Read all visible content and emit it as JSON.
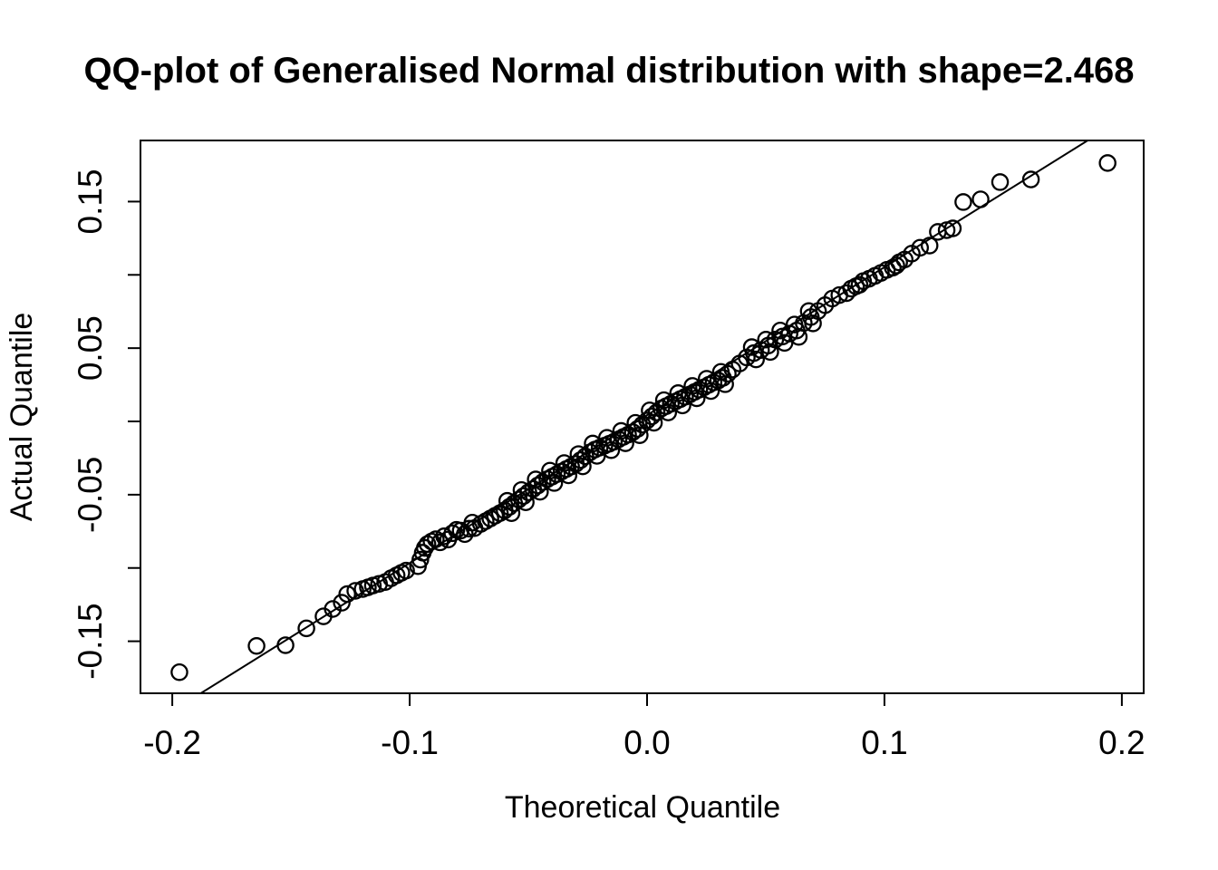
{
  "chart_data": {
    "type": "scatter",
    "title": "QQ-plot of Generalised Normal distribution with shape=2.468",
    "xlabel": "Theoretical Quantile",
    "ylabel": "Actual Quantile",
    "x_range": [
      -0.2134,
      0.2092
    ],
    "y_range": [
      -0.1855,
      0.1917
    ],
    "grid": "off",
    "x_ticks": [
      {
        "value": -0.2,
        "label": "-0.2"
      },
      {
        "value": -0.1,
        "label": "-0.1"
      },
      {
        "value": 0.0,
        "label": "0.0"
      },
      {
        "value": 0.1,
        "label": "0.1"
      },
      {
        "value": 0.2,
        "label": "0.2"
      }
    ],
    "y_ticks": [
      {
        "value": 0.15,
        "label": "0.15"
      },
      {
        "value": 0.1,
        "label": ""
      },
      {
        "value": 0.05,
        "label": "0.05"
      },
      {
        "value": 0.0,
        "label": ""
      },
      {
        "value": -0.05,
        "label": "-0.05"
      },
      {
        "value": -0.1,
        "label": ""
      },
      {
        "value": -0.15,
        "label": "-0.15"
      }
    ],
    "reference_line": {
      "x1": -0.188,
      "y1": -0.1855,
      "x2": 0.188,
      "y2": 0.1941,
      "stroke": "#000000",
      "width": 2
    },
    "marker": {
      "shape": "open-circle",
      "radius_px": 8.6,
      "stroke": "#000000",
      "stroke_width": 2.3,
      "fill": "none"
    },
    "colors": {
      "foreground": "#000000",
      "background": "#ffffff"
    },
    "points": [
      [
        -0.197,
        -0.1711
      ],
      [
        -0.1645,
        -0.1532
      ],
      [
        -0.1523,
        -0.1527
      ],
      [
        -0.1435,
        -0.1412
      ],
      [
        -0.1363,
        -0.133
      ],
      [
        -0.1324,
        -0.128
      ],
      [
        -0.1286,
        -0.1237
      ],
      [
        -0.1263,
        -0.1178
      ],
      [
        -0.1229,
        -0.1156
      ],
      [
        -0.1198,
        -0.1144
      ],
      [
        -0.1176,
        -0.1132
      ],
      [
        -0.1155,
        -0.112
      ],
      [
        -0.1129,
        -0.1108
      ],
      [
        -0.1103,
        -0.1096
      ],
      [
        -0.1078,
        -0.107
      ],
      [
        -0.1055,
        -0.105
      ],
      [
        -0.1035,
        -0.1033
      ],
      [
        -0.1015,
        -0.1018
      ],
      [
        -0.0965,
        -0.0988
      ],
      [
        -0.0955,
        -0.0943
      ],
      [
        -0.0945,
        -0.0896
      ],
      [
        -0.0936,
        -0.0863
      ],
      [
        -0.0925,
        -0.0837
      ],
      [
        -0.0908,
        -0.0819
      ],
      [
        -0.089,
        -0.0804
      ],
      [
        -0.0872,
        -0.0825
      ],
      [
        -0.0855,
        -0.0784
      ],
      [
        -0.0838,
        -0.0806
      ],
      [
        -0.082,
        -0.0763
      ],
      [
        -0.0803,
        -0.074
      ],
      [
        -0.0785,
        -0.0745
      ],
      [
        -0.0768,
        -0.0769
      ],
      [
        -0.075,
        -0.0732
      ],
      [
        -0.0736,
        -0.0691
      ],
      [
        -0.0727,
        -0.0728
      ],
      [
        -0.07,
        -0.0699
      ],
      [
        -0.068,
        -0.0681
      ],
      [
        -0.066,
        -0.0662
      ],
      [
        -0.064,
        -0.0644
      ],
      [
        -0.062,
        -0.0626
      ],
      [
        -0.06,
        -0.0607
      ],
      [
        -0.0589,
        -0.0542
      ],
      [
        -0.058,
        -0.0583
      ],
      [
        -0.0571,
        -0.0626
      ],
      [
        -0.056,
        -0.0558
      ],
      [
        -0.054,
        -0.0533
      ],
      [
        -0.0529,
        -0.0468
      ],
      [
        -0.052,
        -0.0509
      ],
      [
        -0.0511,
        -0.0552
      ],
      [
        -0.05,
        -0.0484
      ],
      [
        -0.048,
        -0.0461
      ],
      [
        -0.0469,
        -0.0396
      ],
      [
        -0.046,
        -0.0437
      ],
      [
        -0.0451,
        -0.048
      ],
      [
        -0.044,
        -0.0414
      ],
      [
        -0.042,
        -0.0394
      ],
      [
        -0.0409,
        -0.0336
      ],
      [
        -0.04,
        -0.0377
      ],
      [
        -0.0391,
        -0.042
      ],
      [
        -0.038,
        -0.036
      ],
      [
        -0.036,
        -0.0342
      ],
      [
        -0.0349,
        -0.0284
      ],
      [
        -0.034,
        -0.0325
      ],
      [
        -0.0331,
        -0.0368
      ],
      [
        -0.032,
        -0.0308
      ],
      [
        -0.03,
        -0.029
      ],
      [
        -0.0289,
        -0.0223
      ],
      [
        -0.028,
        -0.0264
      ],
      [
        -0.0271,
        -0.0307
      ],
      [
        -0.026,
        -0.0238
      ],
      [
        -0.024,
        -0.0211
      ],
      [
        -0.0229,
        -0.0151
      ],
      [
        -0.022,
        -0.0192
      ],
      [
        -0.0211,
        -0.0235
      ],
      [
        -0.02,
        -0.0179
      ],
      [
        -0.018,
        -0.0166
      ],
      [
        -0.0169,
        -0.0112
      ],
      [
        -0.016,
        -0.0153
      ],
      [
        -0.0151,
        -0.0196
      ],
      [
        -0.014,
        -0.0139
      ],
      [
        -0.012,
        -0.0122
      ],
      [
        -0.0109,
        -0.0065
      ],
      [
        -0.01,
        -0.0106
      ],
      [
        -0.0091,
        -0.0149
      ],
      [
        -0.008,
        -0.009
      ],
      [
        -0.006,
        -0.0073
      ],
      [
        -0.0049,
        -0.001
      ],
      [
        -0.004,
        -0.0051
      ],
      [
        -0.0031,
        -0.0094
      ],
      [
        -0.002,
        -0.0022
      ],
      [
        0.0,
        0.0006
      ],
      [
        0.0011,
        0.0075
      ],
      [
        0.002,
        0.0034
      ],
      [
        0.0029,
        -0.0009
      ],
      [
        0.004,
        0.0061
      ],
      [
        0.006,
        0.0088
      ],
      [
        0.0071,
        0.0145
      ],
      [
        0.008,
        0.0104
      ],
      [
        0.0089,
        0.0061
      ],
      [
        0.01,
        0.012
      ],
      [
        0.012,
        0.0136
      ],
      [
        0.0131,
        0.0193
      ],
      [
        0.014,
        0.0152
      ],
      [
        0.0149,
        0.0109
      ],
      [
        0.016,
        0.0168
      ],
      [
        0.018,
        0.0184
      ],
      [
        0.0191,
        0.0242
      ],
      [
        0.02,
        0.0201
      ],
      [
        0.0209,
        0.0158
      ],
      [
        0.022,
        0.0217
      ],
      [
        0.024,
        0.0233
      ],
      [
        0.0251,
        0.0291
      ],
      [
        0.026,
        0.025
      ],
      [
        0.0269,
        0.0207
      ],
      [
        0.028,
        0.0266
      ],
      [
        0.03,
        0.0279
      ],
      [
        0.0311,
        0.0338
      ],
      [
        0.032,
        0.0297
      ],
      [
        0.0329,
        0.0254
      ],
      [
        0.034,
        0.0325
      ],
      [
        0.036,
        0.0354
      ],
      [
        0.039,
        0.0395
      ],
      [
        0.042,
        0.0436
      ],
      [
        0.0441,
        0.0507
      ],
      [
        0.045,
        0.0466
      ],
      [
        0.0459,
        0.0423
      ],
      [
        0.048,
        0.0487
      ],
      [
        0.0501,
        0.0558
      ],
      [
        0.051,
        0.0517
      ],
      [
        0.0519,
        0.0474
      ],
      [
        0.054,
        0.0558
      ],
      [
        0.0561,
        0.062
      ],
      [
        0.057,
        0.0579
      ],
      [
        0.0579,
        0.0536
      ],
      [
        0.06,
        0.0599
      ],
      [
        0.0621,
        0.0661
      ],
      [
        0.063,
        0.062
      ],
      [
        0.0639,
        0.0577
      ],
      [
        0.066,
        0.0671
      ],
      [
        0.0681,
        0.0753
      ],
      [
        0.069,
        0.0712
      ],
      [
        0.0699,
        0.0669
      ],
      [
        0.072,
        0.0753
      ],
      [
        0.075,
        0.0793
      ],
      [
        0.078,
        0.0838
      ],
      [
        0.081,
        0.0862
      ],
      [
        0.084,
        0.0875
      ],
      [
        0.086,
        0.0906
      ],
      [
        0.088,
        0.0922
      ],
      [
        0.0895,
        0.0932
      ],
      [
        0.091,
        0.0957
      ],
      [
        0.0935,
        0.0973
      ],
      [
        0.096,
        0.0993
      ],
      [
        0.0985,
        0.1013
      ],
      [
        0.101,
        0.1034
      ],
      [
        0.1035,
        0.1049
      ],
      [
        0.105,
        0.1064
      ],
      [
        0.1062,
        0.1085
      ],
      [
        0.1085,
        0.1105
      ],
      [
        0.1115,
        0.1145
      ],
      [
        0.115,
        0.1185
      ],
      [
        0.119,
        0.12
      ],
      [
        0.1225,
        0.1293
      ],
      [
        0.1262,
        0.1305
      ],
      [
        0.1288,
        0.1317
      ],
      [
        0.1332,
        0.1497
      ],
      [
        0.1405,
        0.1515
      ],
      [
        0.1487,
        0.1633
      ],
      [
        0.1617,
        0.1651
      ],
      [
        0.194,
        0.1763
      ]
    ]
  }
}
